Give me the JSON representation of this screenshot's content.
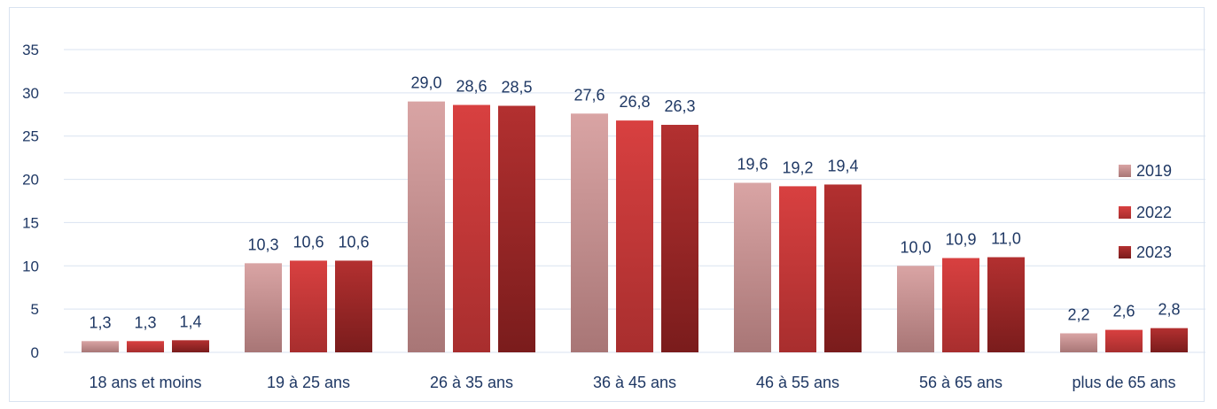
{
  "chart_data": {
    "type": "bar",
    "categories": [
      "18 ans et moins",
      "19 à 25 ans",
      "26 à 35 ans",
      "36 à 45 ans",
      "46 à 55 ans",
      "56 à 65 ans",
      "plus de 65 ans"
    ],
    "series": [
      {
        "name": "2019",
        "values": [
          1.3,
          10.3,
          29.0,
          27.6,
          19.6,
          10.0,
          2.2
        ],
        "labels": [
          "1,3",
          "10,3",
          "29,0",
          "27,6",
          "19,6",
          "10,0",
          "2,2"
        ],
        "color_top": "#d9a4a4",
        "color_bottom": "#a87676"
      },
      {
        "name": "2022",
        "values": [
          1.3,
          10.6,
          28.6,
          26.8,
          19.2,
          10.9,
          2.6
        ],
        "labels": [
          "1,3",
          "10,6",
          "28,6",
          "26,8",
          "19,2",
          "10,9",
          "2,6"
        ],
        "color_top": "#d84040",
        "color_bottom": "#a82e2e"
      },
      {
        "name": "2023",
        "values": [
          1.4,
          10.6,
          28.5,
          26.3,
          19.4,
          11.0,
          2.8
        ],
        "labels": [
          "1,4",
          "10,6",
          "28,5",
          "26,3",
          "19,4",
          "11,0",
          "2,8"
        ],
        "color_top": "#b33030",
        "color_bottom": "#7a1c1c"
      }
    ],
    "yticks": [
      0,
      5,
      10,
      15,
      20,
      25,
      30,
      35
    ],
    "ylim": [
      0,
      35
    ],
    "grid": true,
    "legend_position": "right",
    "title": "",
    "xlabel": "",
    "ylabel": ""
  }
}
